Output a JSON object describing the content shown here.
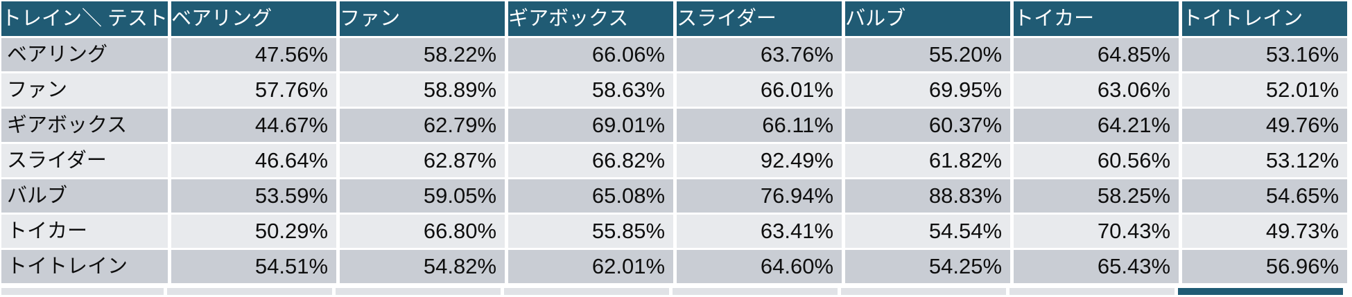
{
  "colors": {
    "header_background": "#205B74",
    "header_text": "#FFFFFF",
    "band_dark_row": "#C9CDD4",
    "band_light_row": "#E8EAED",
    "value_text": "#0E0E0E",
    "cutoff_sliver_gray": "#E0E2E6",
    "cutoff_sliver_blue": "#205B74",
    "page_background": "#FFFFFF"
  },
  "chart_data": {
    "type": "table",
    "corner_label": "トレイン＼ テスト",
    "columns": [
      "ベアリング",
      "ファン",
      "ギアボックス",
      "スライダー",
      "バルブ",
      "トイカー",
      "トイトレイン"
    ],
    "rows": [
      {
        "label": "ベアリング",
        "values": [
          "47.56%",
          "58.22%",
          "66.06%",
          "63.76%",
          "55.20%",
          "64.85%",
          "53.16%"
        ]
      },
      {
        "label": "ファン",
        "values": [
          "57.76%",
          "58.89%",
          "58.63%",
          "66.01%",
          "69.95%",
          "63.06%",
          "52.01%"
        ]
      },
      {
        "label": "ギアボックス",
        "values": [
          "44.67%",
          "62.79%",
          "69.01%",
          "66.11%",
          "60.37%",
          "64.21%",
          "49.76%"
        ]
      },
      {
        "label": "スライダー",
        "values": [
          "46.64%",
          "62.87%",
          "66.82%",
          "92.49%",
          "61.82%",
          "60.56%",
          "53.12%"
        ]
      },
      {
        "label": "バルブ",
        "values": [
          "53.59%",
          "59.05%",
          "65.08%",
          "76.94%",
          "88.83%",
          "58.25%",
          "54.65%"
        ]
      },
      {
        "label": "トイカー",
        "values": [
          "50.29%",
          "66.80%",
          "55.85%",
          "63.41%",
          "54.54%",
          "70.43%",
          "49.73%"
        ]
      },
      {
        "label": "トイトレイン",
        "values": [
          "54.51%",
          "54.82%",
          "62.01%",
          "64.60%",
          "54.25%",
          "65.43%",
          "56.96%"
        ]
      }
    ],
    "matrix_percent": [
      [
        47.56,
        58.22,
        66.06,
        63.76,
        55.2,
        64.85,
        53.16
      ],
      [
        57.76,
        58.89,
        58.63,
        66.01,
        69.95,
        63.06,
        52.01
      ],
      [
        44.67,
        62.79,
        69.01,
        66.11,
        60.37,
        64.21,
        49.76
      ],
      [
        46.64,
        62.87,
        66.82,
        92.49,
        61.82,
        60.56,
        53.12
      ],
      [
        53.59,
        59.05,
        65.08,
        76.94,
        88.83,
        58.25,
        54.65
      ],
      [
        50.29,
        66.8,
        55.85,
        63.41,
        54.54,
        70.43,
        49.73
      ],
      [
        54.51,
        54.82,
        62.01,
        64.6,
        54.25,
        65.43,
        56.96
      ]
    ],
    "unit": "percent",
    "layout_hints": {
      "row_axis_meaning": "train set",
      "column_axis_meaning": "test set",
      "banded_rows": true,
      "grid": "white cell gaps"
    }
  }
}
